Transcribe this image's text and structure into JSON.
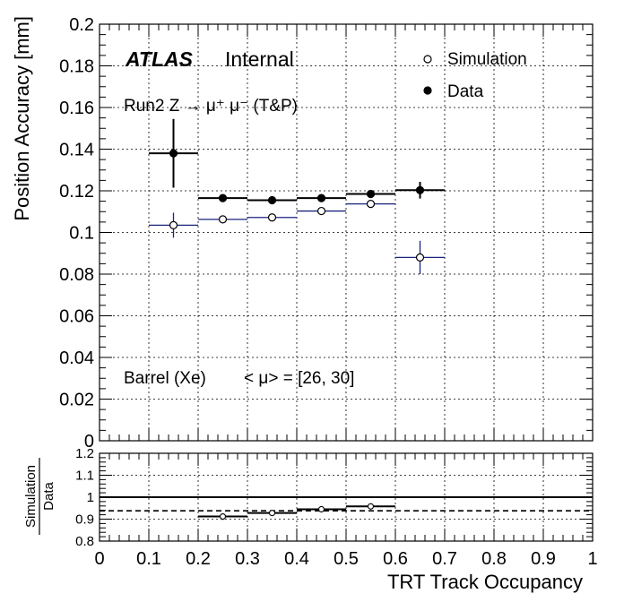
{
  "chart_data": [
    {
      "type": "scatter",
      "xlabel": "",
      "ylabel": "Position Accuracy [mm]",
      "xlim": [
        0,
        1
      ],
      "ylim": [
        0,
        0.2
      ],
      "x_ticks": [
        "0",
        "0.1",
        "0.2",
        "0.3",
        "0.4",
        "0.5",
        "0.6",
        "0.7",
        "0.8",
        "0.9",
        "1"
      ],
      "y_ticks": [
        "0",
        "0.02",
        "0.04",
        "0.06",
        "0.08",
        "0.1",
        "0.12",
        "0.14",
        "0.16",
        "0.18",
        "0.2"
      ],
      "grid": true,
      "legend_position": "top-right",
      "series": [
        {
          "name": "Simulation",
          "marker": "open-circle",
          "color": "#1a237e",
          "x": [
            0.15,
            0.25,
            0.35,
            0.45,
            0.55,
            0.65
          ],
          "xerr": [
            0.05,
            0.05,
            0.05,
            0.05,
            0.05,
            0.05
          ],
          "y": [
            0.1035,
            0.1063,
            0.1072,
            0.1103,
            0.1137,
            0.088
          ],
          "yerr": [
            0.006,
            0.0012,
            0.0012,
            0.0012,
            0.0012,
            0.008
          ]
        },
        {
          "name": "Data",
          "marker": "filled-circle",
          "color": "#000000",
          "x": [
            0.15,
            0.25,
            0.35,
            0.45,
            0.55,
            0.65
          ],
          "xerr": [
            0.05,
            0.05,
            0.05,
            0.05,
            0.05,
            0.05
          ],
          "y": [
            0.138,
            0.1165,
            0.1155,
            0.1165,
            0.1185,
            0.1203
          ],
          "yerr": [
            0.0165,
            0.0015,
            0.0012,
            0.0012,
            0.0012,
            0.004
          ]
        }
      ],
      "annotations": {
        "atlas": "ATLAS",
        "internal": "Internal",
        "process": "Run2 Z → μ⁺ μ⁻ (T&P)",
        "region": "Barrel (Xe)",
        "pileup": "< μ> = [26, 30]"
      }
    },
    {
      "type": "scatter",
      "xlabel": "TRT Track Occupancy",
      "ylabel_top": "Simulation",
      "ylabel_bottom": "Data",
      "xlim": [
        0,
        1
      ],
      "ylim": [
        0.8,
        1.2
      ],
      "x_ticks": [
        "0",
        "0.1",
        "0.2",
        "0.3",
        "0.4",
        "0.5",
        "0.6",
        "0.7",
        "0.8",
        "0.9",
        "1"
      ],
      "y_ticks": [
        "0.8",
        "0.9",
        "1",
        "1.1",
        "1.2"
      ],
      "grid": true,
      "reference_line": 1.0,
      "mean_line": 0.938,
      "series": [
        {
          "name": "",
          "x": [
            0.25,
            0.35,
            0.45,
            0.55
          ],
          "xerr": [
            0.05,
            0.05,
            0.05,
            0.05
          ],
          "y": [
            0.912,
            0.928,
            0.945,
            0.958
          ],
          "yerr": [
            0.015,
            0.01,
            0.01,
            0.01
          ]
        }
      ]
    }
  ]
}
